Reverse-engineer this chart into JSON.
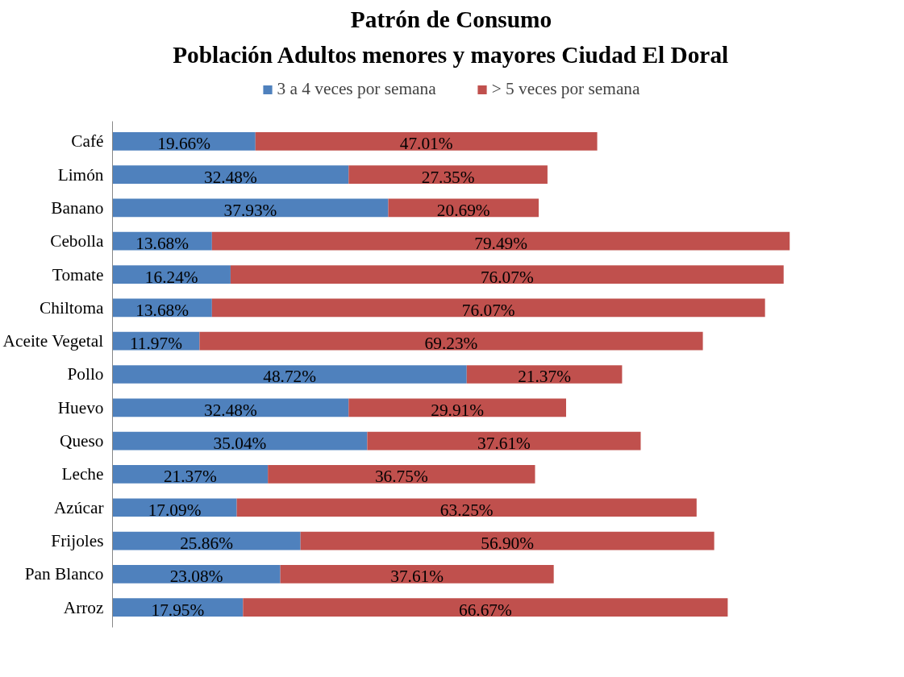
{
  "chart_data": {
    "type": "bar",
    "orientation": "horizontal",
    "stacked": true,
    "title": "Patrón de Consumo",
    "subtitle": "Población Adultos menores y mayores Ciudad El Doral",
    "categories": [
      "Café",
      "Limón",
      "Banano",
      "Cebolla",
      "Tomate",
      "Chiltoma",
      "Aceite Vegetal",
      "Pollo",
      "Huevo",
      "Queso",
      "Leche",
      "Azúcar",
      "Frijoles",
      "Pan Blanco",
      "Arroz"
    ],
    "series": [
      {
        "name": "3 a 4 veces por semana",
        "color": "#4f81bd",
        "values": [
          19.66,
          32.48,
          37.93,
          13.68,
          16.24,
          13.68,
          11.97,
          48.72,
          32.48,
          35.04,
          21.37,
          17.09,
          25.86,
          23.08,
          17.95
        ],
        "value_labels": [
          "19.66%",
          "32.48%",
          "37.93%",
          "13.68%",
          "16.24%",
          "13.68%",
          "11.97%",
          "48.72%",
          "32.48%",
          "35.04%",
          "21.37%",
          "17.09%",
          "25.86%",
          "23.08%",
          "17.95%"
        ]
      },
      {
        "name": "> 5 veces por semana",
        "color": "#c0504d",
        "values": [
          47.01,
          27.35,
          20.69,
          79.49,
          76.07,
          76.07,
          69.23,
          21.37,
          29.91,
          37.61,
          36.75,
          63.25,
          56.9,
          37.61,
          66.67
        ],
        "value_labels": [
          "47.01%",
          "27.35%",
          "20.69%",
          "79.49%",
          "76.07%",
          "76.07%",
          "69.23%",
          "21.37%",
          "29.91%",
          "37.61%",
          "36.75%",
          "63.25%",
          "56.90%",
          "37.61%",
          "66.67%"
        ]
      }
    ],
    "legend": "top",
    "grid": false
  }
}
